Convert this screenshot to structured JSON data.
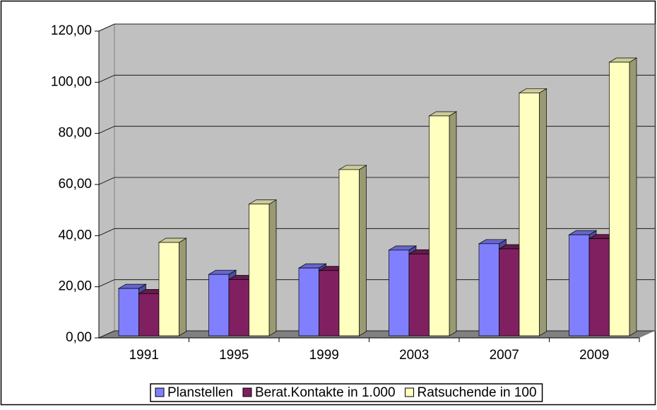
{
  "chart_data": {
    "type": "bar3d",
    "categories": [
      "1991",
      "1995",
      "1999",
      "2003",
      "2007",
      "2009"
    ],
    "series": [
      {
        "name": "Planstellen",
        "color": "#8080ff",
        "values": [
          18.5,
          24,
          26.5,
          33.5,
          36,
          39.5
        ]
      },
      {
        "name": "Berat.Kontakte in 1.000",
        "color": "#802060",
        "values": [
          16.5,
          22,
          25.5,
          32,
          34,
          38
        ]
      },
      {
        "name": "Ratsuchende in 100",
        "color": "#ffffc0",
        "values": [
          36.5,
          51.5,
          65,
          86,
          95,
          107
        ]
      }
    ],
    "ylim": [
      0,
      120
    ],
    "yticks": [
      {
        "value": 0,
        "label": "0,00"
      },
      {
        "value": 20,
        "label": "20,00"
      },
      {
        "value": 40,
        "label": "40,00"
      },
      {
        "value": 60,
        "label": "60,00"
      },
      {
        "value": 80,
        "label": "80,00"
      },
      {
        "value": 100,
        "label": "100,00"
      },
      {
        "value": 120,
        "label": "120,00"
      }
    ],
    "grid": true,
    "legend": "bottom"
  }
}
